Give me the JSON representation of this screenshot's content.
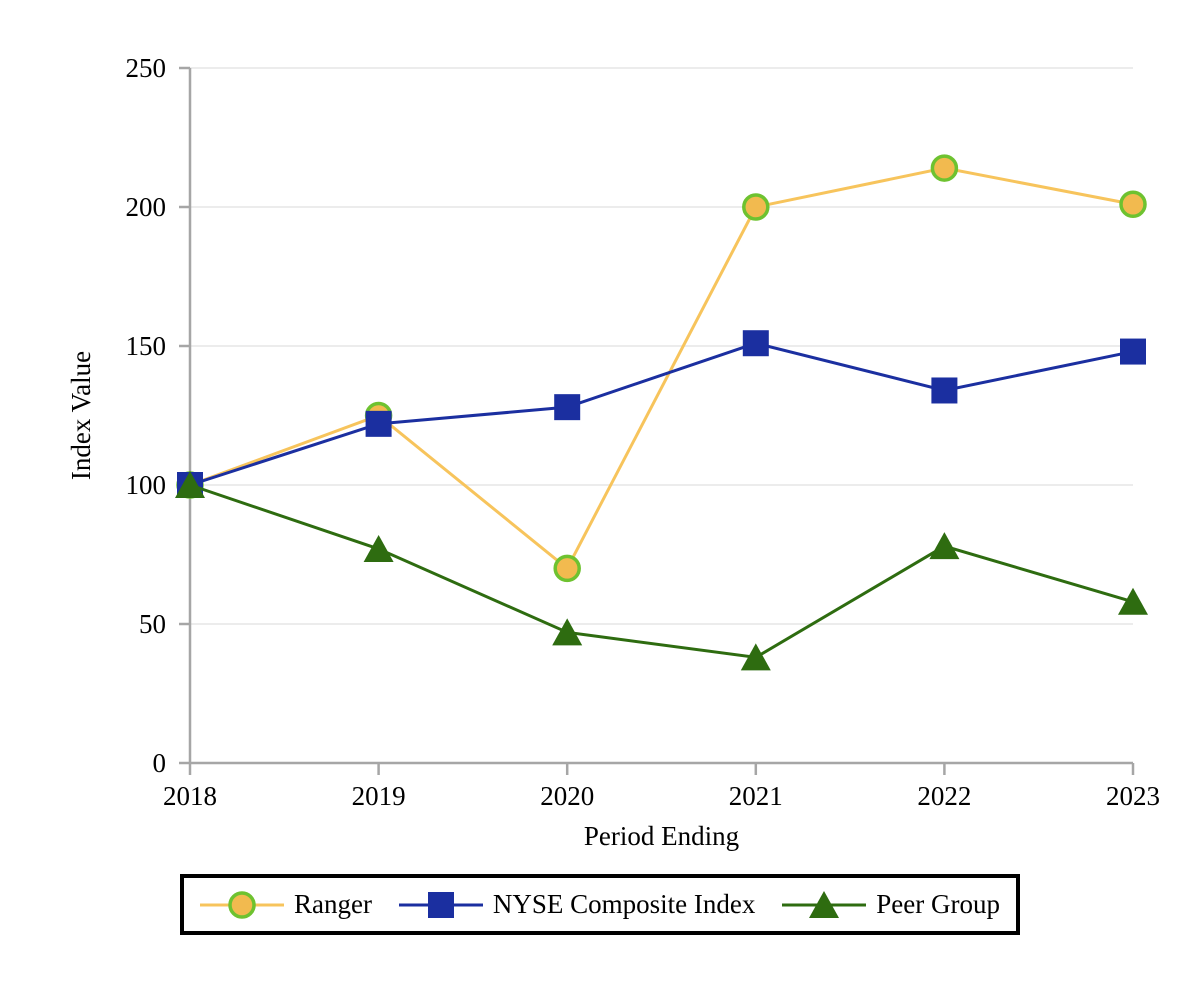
{
  "chart_data": {
    "type": "line",
    "xlabel": "Period Ending",
    "ylabel": "Index Value",
    "categories": [
      "2018",
      "2019",
      "2020",
      "2021",
      "2022",
      "2023"
    ],
    "ylim": [
      0,
      250
    ],
    "yticks": [
      0,
      50,
      100,
      150,
      200,
      250
    ],
    "grid": "horizontal",
    "legend_position": "bottom",
    "series": [
      {
        "name": "Ranger",
        "marker": "circle",
        "line_color": "#F7C45C",
        "marker_fill": "#F2BA4F",
        "marker_stroke": "#6EC230",
        "values": [
          100,
          125,
          70,
          200,
          214,
          201
        ]
      },
      {
        "name": "NYSE Composite Index",
        "marker": "square",
        "line_color": "#1B2FA0",
        "marker_fill": "#1B2FA0",
        "marker_stroke": "#1B2FA0",
        "values": [
          100,
          122,
          128,
          151,
          134,
          148
        ]
      },
      {
        "name": "Peer Group",
        "marker": "triangle",
        "line_color": "#2E6C10",
        "marker_fill": "#2E6C10",
        "marker_stroke": "#2E6C10",
        "values": [
          100,
          77,
          47,
          38,
          78,
          58
        ]
      }
    ],
    "colors": {
      "axis": "#A6A6A6",
      "gridline": "#ECECEC",
      "text": "#000000",
      "background": "#FFFFFF",
      "legend_border": "#000000"
    }
  }
}
